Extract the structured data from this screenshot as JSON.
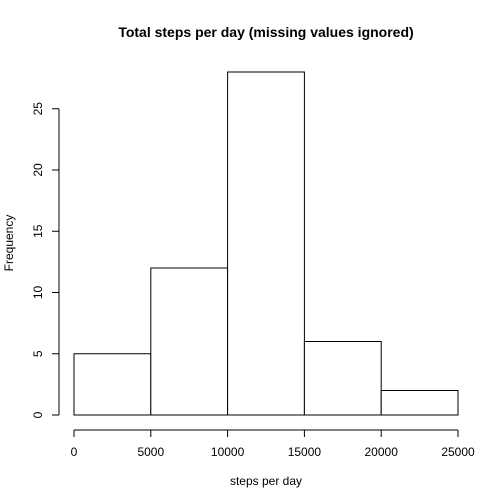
{
  "chart_data": {
    "type": "bar",
    "title": "Total steps per day (missing values ignored)",
    "xlabel": "steps per day",
    "ylabel": "Frequency",
    "bins": [
      {
        "from": 0,
        "to": 5000,
        "count": 5
      },
      {
        "from": 5000,
        "to": 10000,
        "count": 12
      },
      {
        "from": 10000,
        "to": 15000,
        "count": 28
      },
      {
        "from": 15000,
        "to": 20000,
        "count": 6
      },
      {
        "from": 20000,
        "to": 25000,
        "count": 2
      }
    ],
    "xticks": [
      0,
      5000,
      10000,
      15000,
      20000,
      25000
    ],
    "yticks": [
      0,
      5,
      10,
      15,
      20,
      25
    ],
    "xlim": [
      0,
      25000
    ],
    "ylim": [
      0,
      28
    ],
    "grid": false,
    "bar_fill": "#ffffff",
    "bar_stroke": "#000000"
  }
}
